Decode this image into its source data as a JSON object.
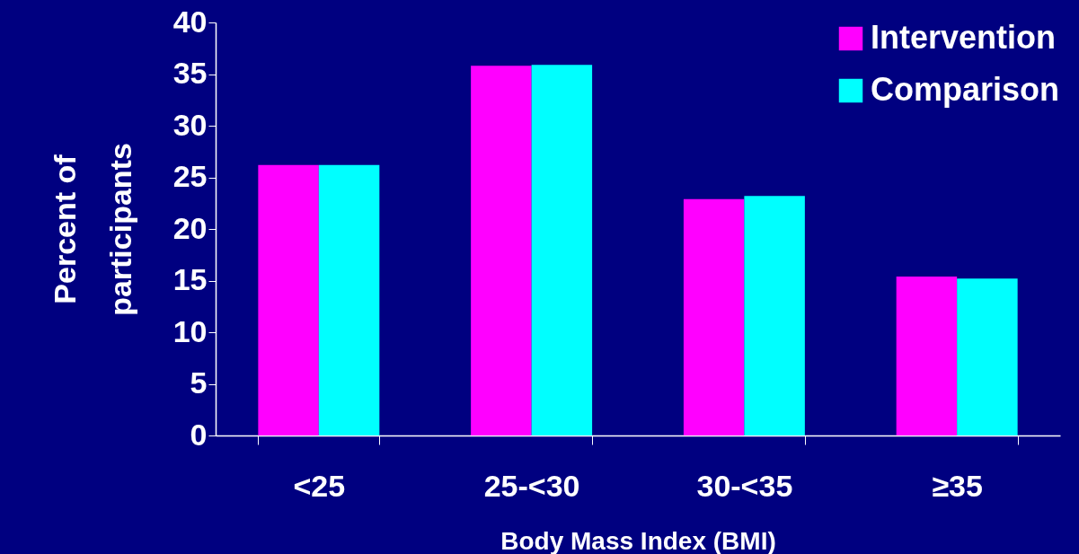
{
  "chart_data": {
    "type": "bar",
    "xlabel": "Body Mass Index (BMI)",
    "ylabel": "Percent of\nparticipants",
    "categories": [
      "<25",
      "25-<30",
      "30-<35",
      "≥35"
    ],
    "series": [
      {
        "name": "Intervention",
        "color": "#ff00ff",
        "values": [
          26.2,
          35.8,
          22.9,
          15.4
        ]
      },
      {
        "name": "Comparison",
        "color": "#00ffff",
        "values": [
          26.2,
          35.9,
          23.2,
          15.2
        ]
      }
    ],
    "ylim": [
      0,
      40
    ],
    "yticks": [
      0,
      5,
      10,
      15,
      20,
      25,
      30,
      35,
      40
    ],
    "grid": false,
    "legend": "top right"
  }
}
